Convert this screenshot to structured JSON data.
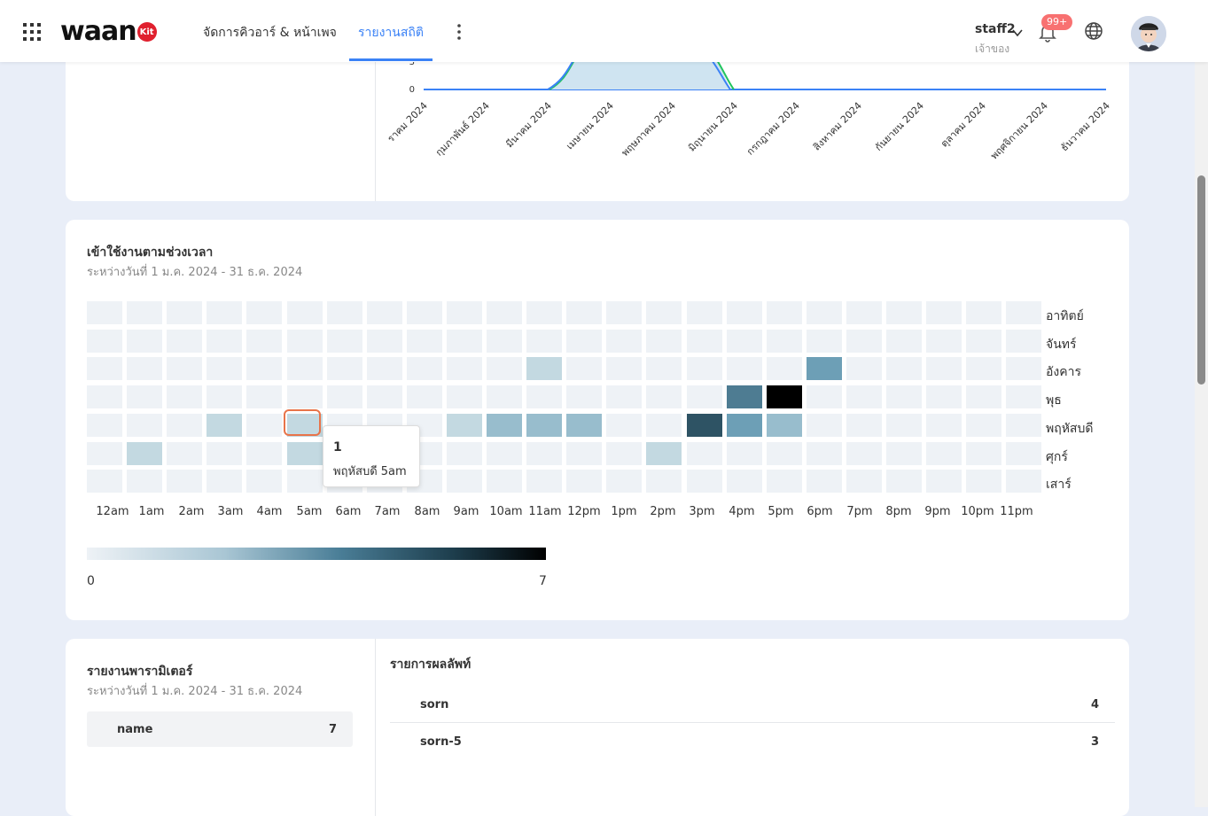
{
  "header": {
    "logo_text": "waan",
    "logo_badge": "Kit",
    "nav": [
      {
        "label": "จัดการคิวอาร์ & หน้าเพจ",
        "active": false
      },
      {
        "label": "รายงานสถิติ",
        "active": true
      }
    ],
    "user_name": "staff2",
    "user_role": "เจ้าของ",
    "notification_badge": "99+",
    "accent_color": "#3b82f6"
  },
  "chart_data": [
    {
      "type": "area",
      "y_ticks": [
        "3",
        "0"
      ],
      "x": [
        "มกราคม 2024",
        "กุมภาพันธ์ 2024",
        "มีนาคม 2024",
        "เมษายน 2024",
        "พฤษภาคม 2024",
        "มิถุนายน 2024",
        "กรกฎาคม 2024",
        "สิงหาคม 2024",
        "กันยายน 2024",
        "ตุลาคม 2024",
        "พฤศจิกายน 2024",
        "ธันวาคม 2024"
      ],
      "x_labels_visible": [
        "ราคม 2024",
        "กุมภาพันธ์ 2024",
        "มีนาคม 2024",
        "เมษายน 2024",
        "พฤษภาคม 2024",
        "มิถุนายน 2024",
        "กรกฎาคม 2024",
        "สิงหาคม 2024",
        "กันยายน 2024",
        "ตุลาคม 2024",
        "พฤศจิกายน 2024",
        "ธันวาคม 2024"
      ],
      "series": [
        {
          "color": "#3b82f6",
          "values": [
            0,
            0,
            0,
            5,
            5,
            0,
            0,
            0,
            0,
            0,
            0,
            0
          ]
        },
        {
          "color": "#22c55e",
          "values": [
            0,
            0,
            0,
            5,
            5,
            0,
            0,
            0,
            0,
            0,
            0,
            0
          ]
        }
      ]
    },
    {
      "type": "heatmap",
      "title": "เข้าใช้งานตามช่วงเวลา",
      "subtitle": "ระหว่างวันที่ 1 ม.ค. 2024 - 31 ธ.ค. 2024",
      "rows": [
        "อาทิตย์",
        "จันทร์",
        "อังคาร",
        "พุธ",
        "พฤหัสบดี",
        "ศุกร์",
        "เสาร์"
      ],
      "columns": [
        "12am",
        "1am",
        "2am",
        "3am",
        "4am",
        "5am",
        "6am",
        "7am",
        "8am",
        "9am",
        "10am",
        "11am",
        "12pm",
        "1pm",
        "2pm",
        "3pm",
        "4pm",
        "5pm",
        "6pm",
        "7pm",
        "8pm",
        "9pm",
        "10pm",
        "11pm"
      ],
      "values": [
        [
          0,
          0,
          0,
          0,
          0,
          0,
          0,
          0,
          0,
          0,
          0,
          0,
          0,
          0,
          0,
          0,
          0,
          0,
          0,
          0,
          0,
          0,
          0,
          0
        ],
        [
          0,
          0,
          0,
          0,
          0,
          0,
          0,
          0,
          0,
          0,
          0,
          0,
          0,
          0,
          0,
          0,
          0,
          0,
          0,
          0,
          0,
          0,
          0,
          0
        ],
        [
          0,
          0,
          0,
          0,
          0,
          0,
          0,
          0,
          0,
          0,
          0,
          1,
          0,
          0,
          0,
          0,
          0,
          0,
          3,
          0,
          0,
          0,
          0,
          0
        ],
        [
          0,
          0,
          0,
          0,
          0,
          0,
          0,
          0,
          0,
          0,
          0,
          0,
          0,
          0,
          0,
          0,
          4,
          7,
          0,
          0,
          0,
          0,
          0,
          0
        ],
        [
          0,
          0,
          0,
          1,
          0,
          1,
          0,
          0,
          0,
          1,
          2,
          2,
          2,
          0,
          0,
          5,
          3,
          2,
          0,
          0,
          0,
          0,
          0,
          0
        ],
        [
          0,
          1,
          0,
          0,
          0,
          1,
          0,
          0,
          0,
          0,
          0,
          0,
          0,
          0,
          1,
          0,
          0,
          0,
          0,
          0,
          0,
          0,
          0,
          0
        ],
        [
          0,
          0,
          0,
          0,
          0,
          0,
          0,
          0,
          0,
          0,
          0,
          0,
          0,
          0,
          0,
          0,
          0,
          0,
          0,
          0,
          0,
          0,
          0,
          0
        ]
      ],
      "legend_min": "0",
      "legend_max": "7",
      "tooltip": {
        "value": "1",
        "label": "พฤหัสบดี 5am"
      },
      "colors": {
        "empty": "#eef2f6",
        "l1": "#c3d9e1",
        "l2": "#98bdcd",
        "l3": "#6d9fb6",
        "l4": "#4e7c92",
        "l5": "#2e5364",
        "l7": "#000000",
        "selection": "#e8744a"
      }
    }
  ],
  "params": {
    "title": "รายงานพารามิเตอร์",
    "subtitle": "ระหว่างวันที่ 1 ม.ค. 2024 - 31 ธ.ค. 2024",
    "items": [
      {
        "name": "name",
        "count": "7"
      }
    ]
  },
  "results": {
    "title": "รายการผลลัพท์",
    "items": [
      {
        "name": "sorn",
        "count": "4"
      },
      {
        "name": "sorn-5",
        "count": "3"
      }
    ]
  }
}
